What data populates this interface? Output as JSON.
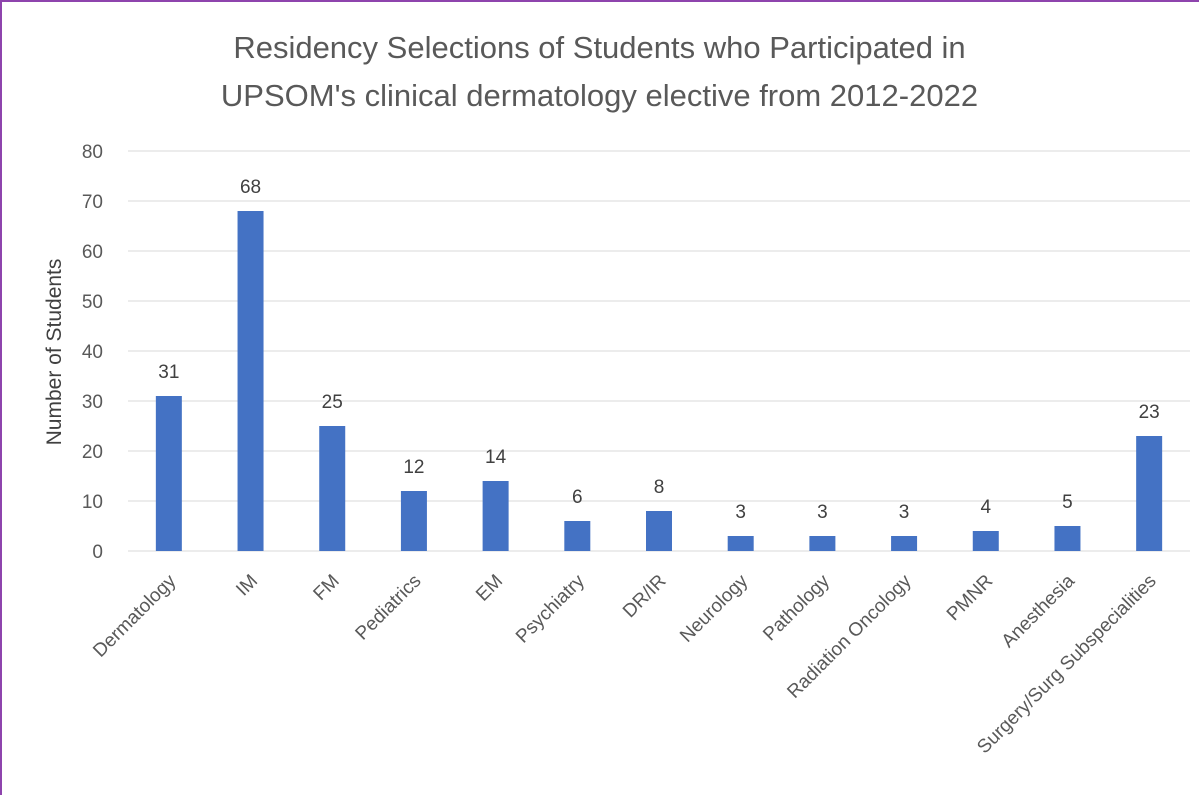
{
  "chart_data": {
    "type": "bar",
    "title_line1": "Residency Selections of Students who Participated in",
    "title_line2": "UPSOM's clinical dermatology elective from 2012-2022",
    "ylabel": "Number of Students",
    "xlabel": "",
    "ylim": [
      0,
      80
    ],
    "yticks": [
      0,
      10,
      20,
      30,
      40,
      50,
      60,
      70,
      80
    ],
    "grid": true,
    "bar_color": "#4472c4",
    "categories": [
      "Dermatology",
      "IM",
      "FM",
      "Pediatrics",
      "EM",
      "Psychiatry",
      "DR/IR",
      "Neurology",
      "Pathology",
      "Radiation Oncology",
      "PMNR",
      "Anesthesia",
      "Surgery/Surg Subspecialities"
    ],
    "values": [
      31,
      68,
      25,
      12,
      14,
      6,
      8,
      3,
      3,
      3,
      4,
      5,
      23
    ]
  }
}
